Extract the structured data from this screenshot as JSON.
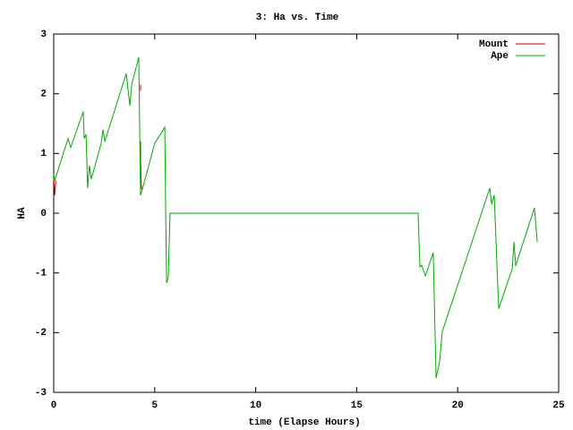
{
  "chart_data": {
    "type": "line",
    "title": "3: Ha vs. Time",
    "xlabel": "time (Elapse Hours)",
    "ylabel": "HA",
    "xlim": [
      0,
      25
    ],
    "ylim": [
      -3,
      3
    ],
    "xticks": [
      0,
      5,
      10,
      15,
      20,
      25
    ],
    "yticks": [
      -3,
      -2,
      -1,
      0,
      1,
      2,
      3
    ],
    "grid": false,
    "legend": "top-right",
    "series": [
      {
        "name": "Mount",
        "color": "#cc0000",
        "x": [
          0,
          0.05,
          0.1,
          4.3,
          4.3,
          4.3,
          4.3,
          4.3,
          4.3,
          4.32,
          4.35
        ],
        "values": [
          0.6,
          0.3,
          0.55,
          null,
          2.15,
          2.05,
          null,
          1.2,
          0.9,
          0.6,
          0.4
        ]
      },
      {
        "name": "Ape",
        "color": "#00aa00",
        "x": [
          0,
          0.05,
          0.71,
          0.84,
          1.46,
          1.51,
          1.6,
          1.68,
          1.77,
          1.86,
          2.35,
          2.44,
          2.53,
          3.59,
          3.77,
          3.86,
          4.21,
          4.3,
          4.43,
          5.0,
          5.5,
          5.54,
          5.59,
          5.67,
          5.76,
          18.04,
          18.13,
          18.22,
          18.4,
          18.79,
          18.93,
          19.1,
          19.24,
          21.59,
          21.68,
          21.81,
          22.03,
          22.7,
          22.79,
          22.87,
          23.8,
          23.94
        ],
        "values": [
          0.65,
          0.55,
          1.25,
          1.1,
          1.7,
          1.25,
          1.32,
          0.42,
          0.8,
          0.57,
          1.17,
          1.4,
          1.2,
          2.34,
          1.8,
          2.15,
          2.61,
          0.3,
          0.45,
          1.17,
          1.44,
          0.12,
          -1.17,
          -1.08,
          0,
          0,
          -0.9,
          -0.87,
          -1.05,
          -0.66,
          -2.76,
          -2.49,
          -1.98,
          0.42,
          0.15,
          0.3,
          -1.6,
          -0.93,
          -0.48,
          -0.88,
          0.09,
          -0.48
        ]
      }
    ]
  }
}
